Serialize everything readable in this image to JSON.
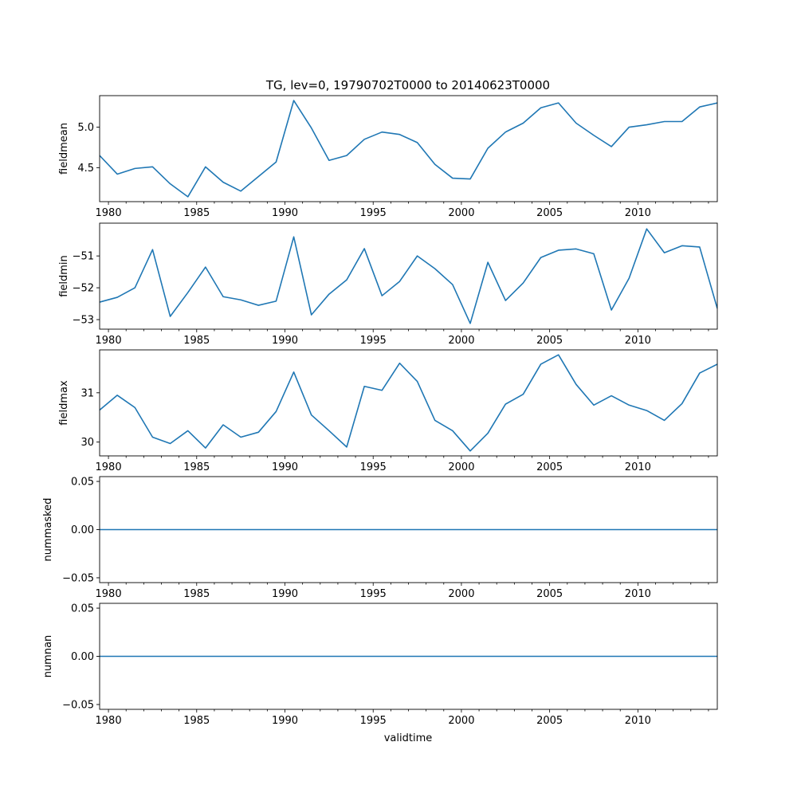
{
  "figure": {
    "title": "TG, lev=0, 19790702T0000 to 20140623T0000",
    "xlabel": "validtime"
  },
  "line_color": "#1f77b4",
  "chart_data": [
    {
      "type": "line",
      "ylabel": "fieldmean",
      "x": [
        1979.5,
        1980.5,
        1981.5,
        1982.5,
        1983.5,
        1984.5,
        1985.5,
        1986.5,
        1987.5,
        1988.5,
        1989.5,
        1990.5,
        1991.5,
        1992.5,
        1993.5,
        1994.5,
        1995.5,
        1996.5,
        1997.5,
        1998.5,
        1999.5,
        2000.5,
        2001.5,
        2002.5,
        2003.5,
        2004.5,
        2005.5,
        2006.5,
        2007.5,
        2008.5,
        2009.5,
        2010.5,
        2011.5,
        2012.5,
        2013.5,
        2014.5
      ],
      "y": [
        4.65,
        4.42,
        4.49,
        4.51,
        4.3,
        4.14,
        4.51,
        4.32,
        4.21,
        4.39,
        4.57,
        5.33,
        4.99,
        4.59,
        4.65,
        4.85,
        4.94,
        4.91,
        4.81,
        4.54,
        4.37,
        4.36,
        4.74,
        4.94,
        5.05,
        5.24,
        5.3,
        5.05,
        4.9,
        4.76,
        5.0,
        5.03,
        5.07,
        5.07,
        5.25,
        5.3
      ],
      "xlim": [
        1979.5,
        2014.5
      ],
      "ylim": [
        4.08,
        5.39
      ],
      "yticks": [
        4.5,
        5.0
      ],
      "ytick_labels": [
        "4.5",
        "5.0"
      ]
    },
    {
      "type": "line",
      "ylabel": "fieldmin",
      "x": [
        1979.5,
        1980.5,
        1981.5,
        1982.5,
        1983.5,
        1984.5,
        1985.5,
        1986.5,
        1987.5,
        1988.5,
        1989.5,
        1990.5,
        1991.5,
        1992.5,
        1993.5,
        1994.5,
        1995.5,
        1996.5,
        1997.5,
        1998.5,
        1999.5,
        2000.5,
        2001.5,
        2002.5,
        2003.5,
        2004.5,
        2005.5,
        2006.5,
        2007.5,
        2008.5,
        2009.5,
        2010.5,
        2011.5,
        2012.5,
        2013.5,
        2014.5
      ],
      "y": [
        -52.45,
        -52.3,
        -52.0,
        -50.8,
        -52.9,
        -52.15,
        -51.35,
        -52.28,
        -52.38,
        -52.55,
        -52.42,
        -50.4,
        -52.85,
        -52.2,
        -51.75,
        -50.77,
        -52.25,
        -51.8,
        -51.0,
        -51.4,
        -51.9,
        -53.12,
        -51.2,
        -52.4,
        -51.85,
        -51.05,
        -50.82,
        -50.78,
        -50.93,
        -52.7,
        -51.7,
        -50.15,
        -50.9,
        -50.68,
        -50.72,
        -52.65
      ],
      "xlim": [
        1979.5,
        2014.5
      ],
      "ylim": [
        -53.3,
        -49.97
      ],
      "yticks": [
        -53,
        -52,
        -51
      ],
      "ytick_labels": [
        "−53",
        "−52",
        "−51"
      ]
    },
    {
      "type": "line",
      "ylabel": "fieldmax",
      "x": [
        1979.5,
        1980.5,
        1981.5,
        1982.5,
        1983.5,
        1984.5,
        1985.5,
        1986.5,
        1987.5,
        1988.5,
        1989.5,
        1990.5,
        1991.5,
        1992.5,
        1993.5,
        1994.5,
        1995.5,
        1996.5,
        1997.5,
        1998.5,
        1999.5,
        2000.5,
        2001.5,
        2002.5,
        2003.5,
        2004.5,
        2005.5,
        2006.5,
        2007.5,
        2008.5,
        2009.5,
        2010.5,
        2011.5,
        2012.5,
        2013.5,
        2014.5
      ],
      "y": [
        30.65,
        30.95,
        30.7,
        30.1,
        29.97,
        30.23,
        29.88,
        30.35,
        30.1,
        30.2,
        30.62,
        31.42,
        30.55,
        30.23,
        29.9,
        31.13,
        31.05,
        31.6,
        31.23,
        30.44,
        30.23,
        29.82,
        30.18,
        30.77,
        30.97,
        31.58,
        31.77,
        31.17,
        30.75,
        30.94,
        30.75,
        30.64,
        30.44,
        30.78,
        31.4,
        31.58
      ],
      "xlim": [
        1979.5,
        2014.5
      ],
      "ylim": [
        29.72,
        31.87
      ],
      "yticks": [
        30,
        31
      ],
      "ytick_labels": [
        "30",
        "31"
      ]
    },
    {
      "type": "line",
      "ylabel": "nummasked",
      "x": [
        1979.5,
        2014.5
      ],
      "y": [
        0.0,
        0.0
      ],
      "xlim": [
        1979.5,
        2014.5
      ],
      "ylim": [
        -0.055,
        0.055
      ],
      "yticks": [
        -0.05,
        0.0,
        0.05
      ],
      "ytick_labels": [
        "−0.05",
        "0.00",
        "0.05"
      ]
    },
    {
      "type": "line",
      "ylabel": "numnan",
      "x": [
        1979.5,
        2014.5
      ],
      "y": [
        0.0,
        0.0
      ],
      "xlim": [
        1979.5,
        2014.5
      ],
      "ylim": [
        -0.055,
        0.055
      ],
      "yticks": [
        -0.05,
        0.0,
        0.05
      ],
      "ytick_labels": [
        "−0.05",
        "0.00",
        "0.05"
      ]
    }
  ],
  "x_major_ticks": [
    1980,
    1985,
    1990,
    1995,
    2000,
    2005,
    2010
  ],
  "x_major_labels": [
    "1980",
    "1985",
    "1990",
    "1995",
    "2000",
    "2005",
    "2010"
  ]
}
